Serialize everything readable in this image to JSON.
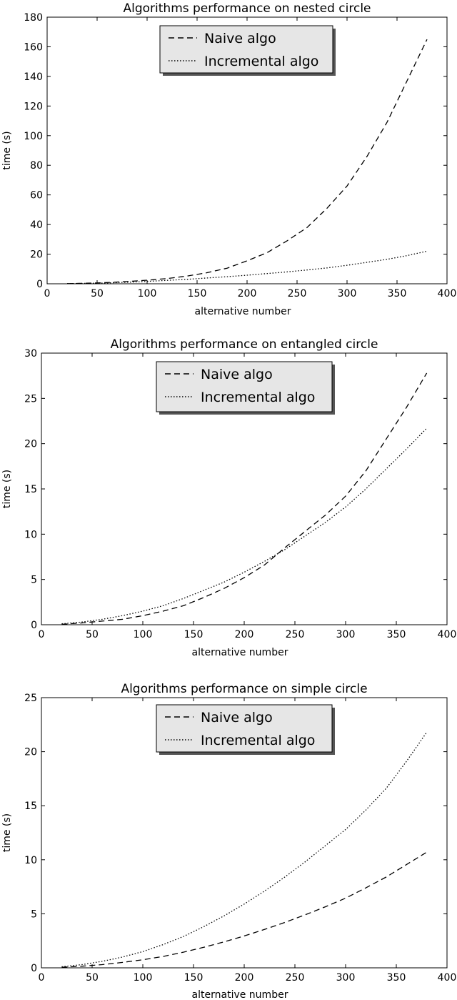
{
  "chart_data": [
    {
      "type": "line",
      "title": "Algorithms performance on nested circle",
      "xlabel": "alternative number",
      "ylabel": "time (s)",
      "xlim": [
        0,
        400
      ],
      "ylim": [
        0,
        180
      ],
      "xticks": [
        0,
        50,
        100,
        150,
        200,
        250,
        300,
        350,
        400
      ],
      "yticks": [
        0,
        20,
        40,
        60,
        80,
        100,
        120,
        140,
        160,
        180
      ],
      "grid": false,
      "legend": "top-center",
      "x": [
        20,
        40,
        60,
        80,
        100,
        120,
        140,
        160,
        180,
        200,
        220,
        240,
        260,
        280,
        300,
        320,
        340,
        360,
        380
      ],
      "series": [
        {
          "name": "Naive algo",
          "style": "dashed",
          "color": "#000000",
          "values": [
            0.1,
            0.4,
            0.8,
            1.5,
            2.4,
            3.5,
            5.2,
            7.5,
            10.5,
            15.5,
            21,
            29,
            38,
            51,
            66,
            86,
            109,
            137,
            165
          ]
        },
        {
          "name": "Incremental algo",
          "style": "dotted",
          "color": "#000000",
          "values": [
            0.1,
            0.3,
            0.6,
            1.0,
            1.6,
            2.3,
            3.0,
            3.9,
            4.8,
            5.8,
            6.9,
            8.0,
            9.3,
            10.7,
            12.5,
            14.5,
            16.5,
            19.0,
            22.0
          ]
        }
      ]
    },
    {
      "type": "line",
      "title": "Algorithms performance on entangled circle",
      "xlabel": "alternative number",
      "ylabel": "time (s)",
      "xlim": [
        0,
        400
      ],
      "ylim": [
        0,
        30
      ],
      "xticks": [
        0,
        50,
        100,
        150,
        200,
        250,
        300,
        350,
        400
      ],
      "yticks": [
        0,
        5,
        10,
        15,
        20,
        25,
        30
      ],
      "grid": false,
      "legend": "top-center",
      "x": [
        20,
        40,
        60,
        80,
        100,
        120,
        140,
        160,
        180,
        200,
        220,
        240,
        260,
        280,
        300,
        320,
        340,
        360,
        380
      ],
      "series": [
        {
          "name": "Naive algo",
          "style": "dashed",
          "color": "#000000",
          "values": [
            0.05,
            0.2,
            0.4,
            0.6,
            1.0,
            1.5,
            2.1,
            3.0,
            4.0,
            5.2,
            6.6,
            8.5,
            10.3,
            12.1,
            14.2,
            17.0,
            20.5,
            24.0,
            27.8
          ]
        },
        {
          "name": "Incremental algo",
          "style": "dotted",
          "color": "#000000",
          "values": [
            0.1,
            0.3,
            0.6,
            1.0,
            1.5,
            2.1,
            2.9,
            3.8,
            4.7,
            5.8,
            7.0,
            8.3,
            9.8,
            11.3,
            13.0,
            15.0,
            17.2,
            19.4,
            21.7
          ]
        }
      ]
    },
    {
      "type": "line",
      "title": "Algorithms performance on simple circle",
      "xlabel": "alternative number",
      "ylabel": "time (s)",
      "xlim": [
        0,
        400
      ],
      "ylim": [
        0,
        25
      ],
      "xticks": [
        0,
        50,
        100,
        150,
        200,
        250,
        300,
        350,
        400
      ],
      "yticks": [
        0,
        5,
        10,
        15,
        20,
        25
      ],
      "grid": false,
      "legend": "top-center",
      "x": [
        20,
        40,
        60,
        80,
        100,
        120,
        140,
        160,
        180,
        200,
        220,
        240,
        260,
        280,
        300,
        320,
        340,
        360,
        380
      ],
      "series": [
        {
          "name": "Naive algo",
          "style": "dashed",
          "color": "#000000",
          "values": [
            0.05,
            0.15,
            0.3,
            0.5,
            0.75,
            1.05,
            1.45,
            1.9,
            2.4,
            2.95,
            3.55,
            4.2,
            4.9,
            5.65,
            6.45,
            7.4,
            8.4,
            9.55,
            10.7
          ]
        },
        {
          "name": "Incremental algo",
          "style": "dotted",
          "color": "#000000",
          "values": [
            0.1,
            0.3,
            0.6,
            1.0,
            1.5,
            2.15,
            2.9,
            3.8,
            4.8,
            5.9,
            7.1,
            8.4,
            9.8,
            11.3,
            12.8,
            14.6,
            16.6,
            19.1,
            21.8
          ]
        }
      ]
    }
  ]
}
